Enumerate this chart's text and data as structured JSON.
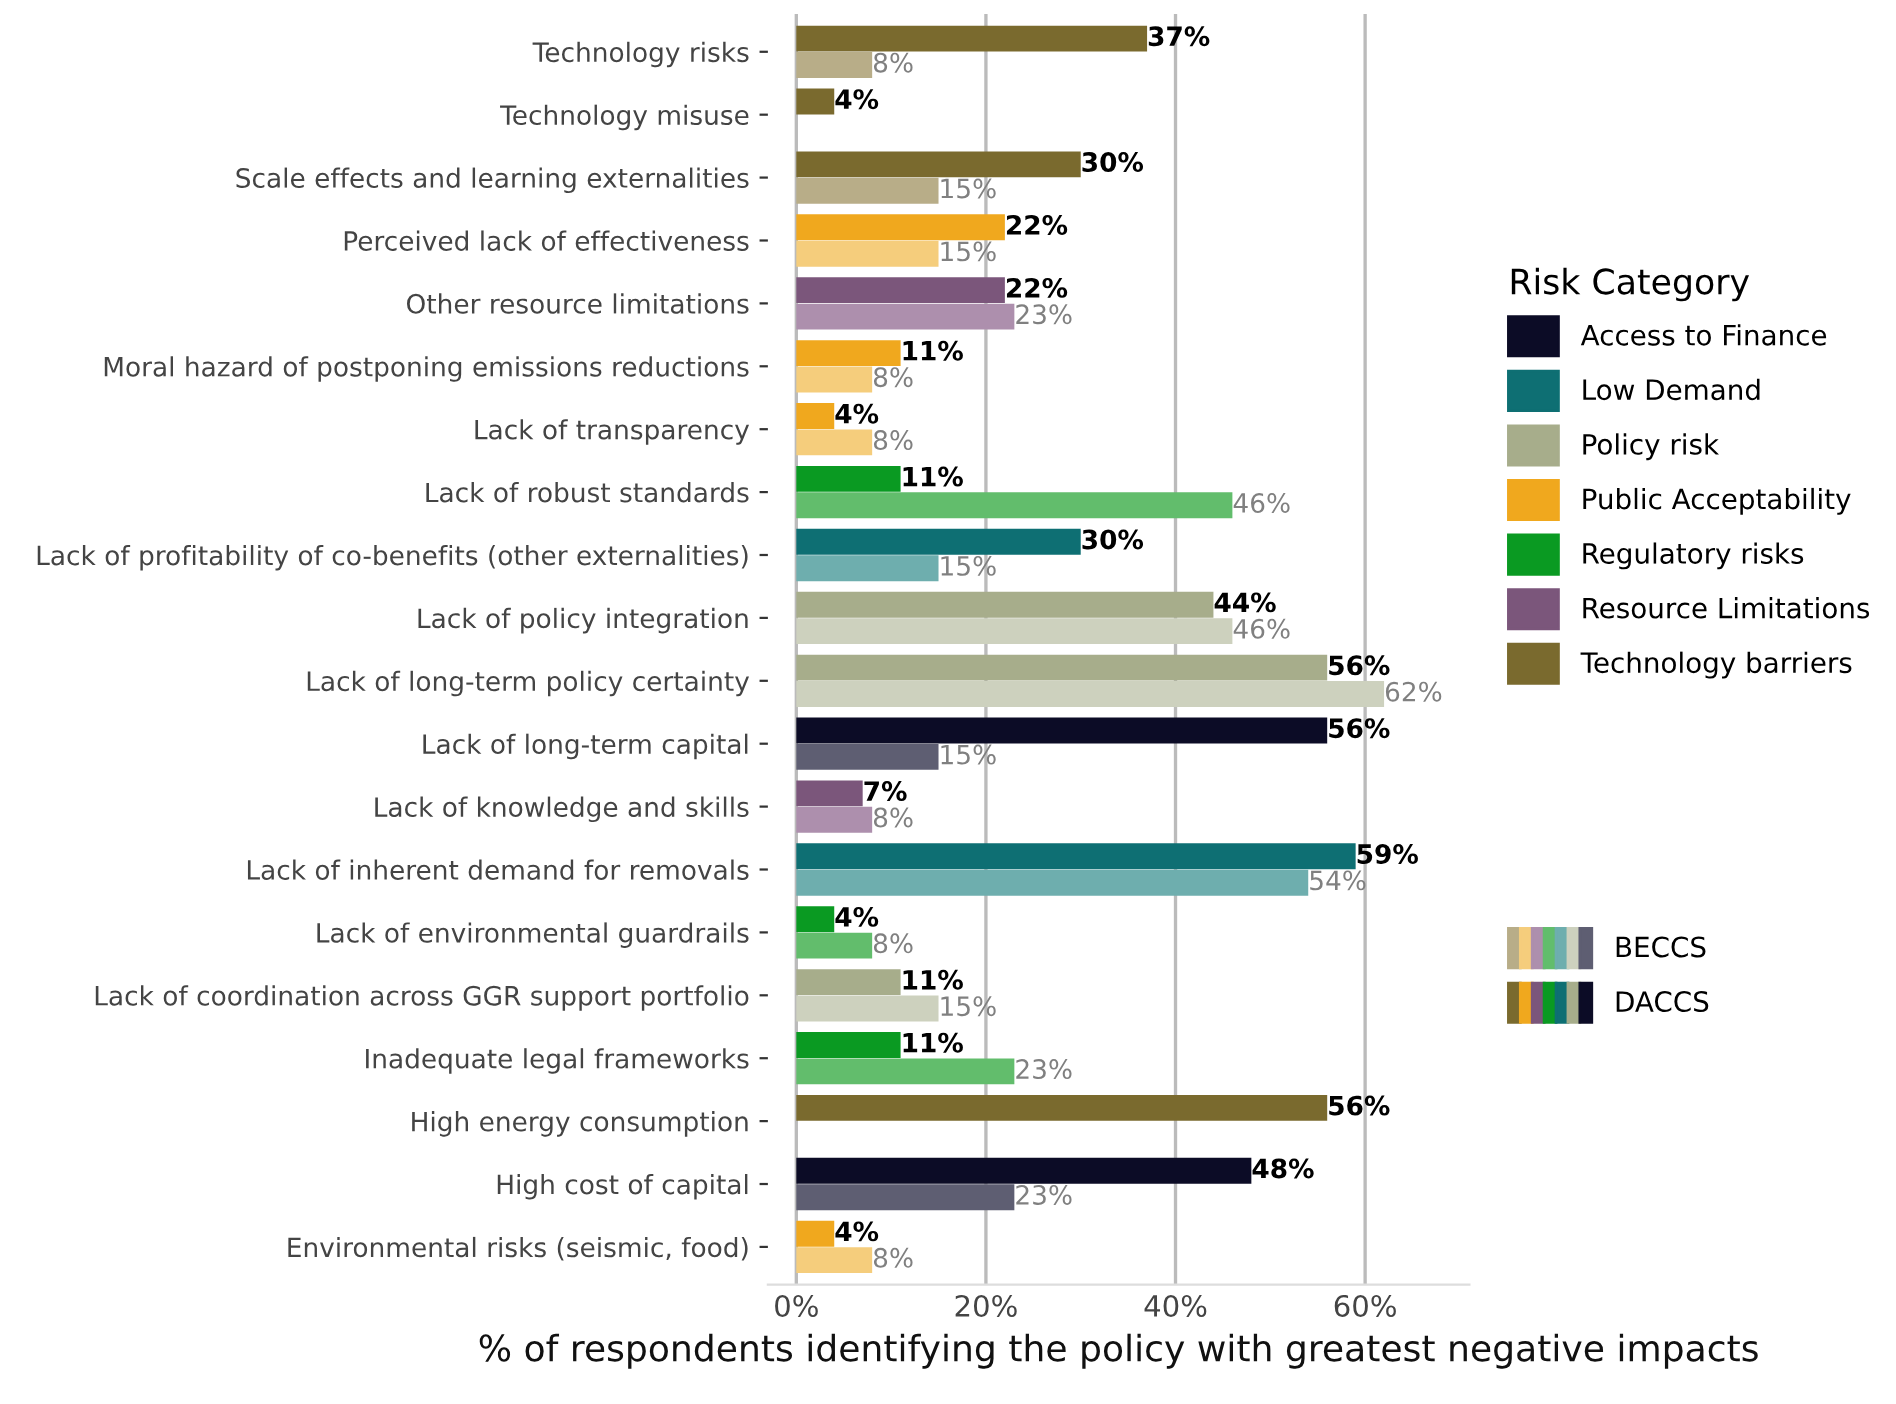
{
  "chart_data": {
    "type": "bar",
    "orientation": "horizontal",
    "xlabel": "% of respondents identifying the policy with greatest negative impacts",
    "legend_title": "Risk Category",
    "legend": "right",
    "grid": "x",
    "categories": [
      "Technology risks",
      "Technology misuse",
      "Scale effects and learning externalities",
      "Perceived lack of effectiveness",
      "Other resource limitations",
      "Moral hazard of postponing emissions reductions",
      "Lack of transparency",
      "Lack of robust standards",
      "Lack of profitability of co-benefits (other externalities)",
      "Lack of policy integration",
      "Lack of long-term policy certainty",
      "Lack of long-term capital",
      "Lack of knowledge and skills",
      "Lack of inherent demand for removals",
      "Lack of environmental guardrails",
      "Lack of coordination across GGR support portfolio",
      "Inadequate legal frameworks",
      "High energy consumption",
      "High cost of capital",
      "Environmental risks (seismic, food)"
    ],
    "xlim": [
      -3,
      71
    ],
    "xticks": [
      {
        "value": 0,
        "label": "0%"
      },
      {
        "value": 20,
        "label": "20%"
      },
      {
        "value": 40,
        "label": "40%"
      },
      {
        "value": 60,
        "label": "60%"
      }
    ],
    "series": [
      {
        "name": "DACCS",
        "values": [
          37,
          4,
          30,
          22,
          22,
          11,
          4,
          11,
          30,
          44,
          56,
          56,
          7,
          59,
          4,
          11,
          11,
          56,
          48,
          4
        ],
        "value_labels": [
          "37%",
          "4%",
          "30%",
          "22%",
          "22%",
          "11%",
          "4%",
          "11%",
          "30%",
          "44%",
          "56%",
          "56%",
          "7%",
          "59%",
          "4%",
          "11%",
          "11%",
          "56%",
          "48%",
          "4%"
        ],
        "colors": [
          "#7a6a2e",
          "#7a6a2e",
          "#7a6a2e",
          "#f0a81e",
          "#7b567b",
          "#f0a81e",
          "#f0a81e",
          "#0a9a22",
          "#0e6f73",
          "#a7ad8b",
          "#a7ad8b",
          "#0c0c26",
          "#7b567b",
          "#0e6f73",
          "#0a9a22",
          "#a7ad8b",
          "#0a9a22",
          "#7a6a2e",
          "#0c0c26",
          "#f0a81e"
        ]
      },
      {
        "name": "BECCS",
        "values": [
          8,
          null,
          15,
          15,
          23,
          8,
          8,
          46,
          15,
          46,
          62,
          15,
          8,
          54,
          8,
          15,
          23,
          null,
          23,
          8
        ],
        "value_labels": [
          "8%",
          null,
          "15%",
          "15%",
          "23%",
          "8%",
          "8%",
          "46%",
          "15%",
          "46%",
          "62%",
          "15%",
          "8%",
          "54%",
          "8%",
          "15%",
          "23%",
          null,
          "23%",
          "8%"
        ],
        "colors": [
          "#b8ad88",
          "#b8ad88",
          "#b8ad88",
          "#f5cd7c",
          "#ad8fad",
          "#f5cd7c",
          "#f5cd7c",
          "#62bd6c",
          "#6eaeae",
          "#cdd1be",
          "#cdd1be",
          "#5e5e72",
          "#ad8fad",
          "#6eaeae",
          "#62bd6c",
          "#cdd1be",
          "#62bd6c",
          "#b8ad88",
          "#5e5e72",
          "#f5cd7c"
        ]
      },
      {
        "name": "Access to Finance",
        "color": "#0c0c26",
        "values": [
          null,
          null,
          null,
          null,
          null,
          null,
          null,
          null,
          null,
          null,
          null,
          null,
          null,
          null,
          null,
          null,
          null,
          null,
          null,
          null
        ]
      },
      {
        "name": "Low Demand",
        "color": "#0e6f73",
        "values": [
          null,
          null,
          null,
          null,
          null,
          null,
          null,
          null,
          null,
          null,
          null,
          null,
          null,
          null,
          null,
          null,
          null,
          null,
          null,
          null
        ]
      },
      {
        "name": "Policy risk",
        "color": "#a7ad8b",
        "values": [
          null,
          null,
          null,
          null,
          null,
          null,
          null,
          null,
          null,
          null,
          null,
          null,
          null,
          null,
          null,
          null,
          null,
          null,
          null,
          null
        ]
      },
      {
        "name": "Public Acceptability",
        "color": "#f0a81e",
        "values": [
          null,
          null,
          null,
          null,
          null,
          null,
          null,
          null,
          null,
          null,
          null,
          null,
          null,
          null,
          null,
          null,
          null,
          null,
          null,
          null
        ]
      },
      {
        "name": "Regulatory risks",
        "color": "#0a9a22",
        "values": [
          null,
          null,
          null,
          null,
          null,
          null,
          null,
          null,
          null,
          null,
          null,
          null,
          null,
          null,
          null,
          null,
          null,
          null,
          null,
          null
        ]
      },
      {
        "name": "Resource Limitations",
        "color": "#7b567b",
        "values": [
          null,
          null,
          null,
          null,
          null,
          null,
          null,
          null,
          null,
          null,
          null,
          null,
          null,
          null,
          null,
          null,
          null,
          null,
          null,
          null
        ]
      },
      {
        "name": "Technology barriers",
        "color": "#7a6a2e",
        "values": [
          null,
          null,
          null,
          null,
          null,
          null,
          null,
          null,
          null,
          null,
          null,
          null,
          null,
          null,
          null,
          null,
          null,
          null,
          null,
          null
        ]
      }
    ]
  }
}
